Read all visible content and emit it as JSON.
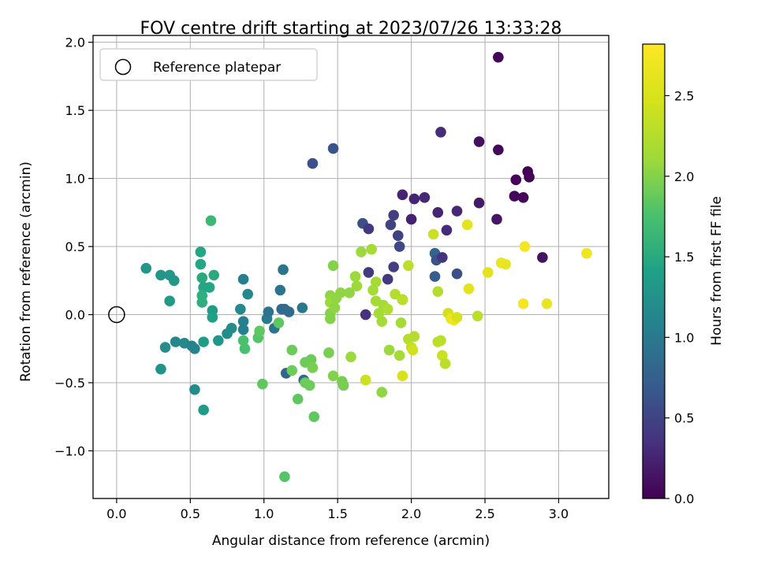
{
  "chart_data": {
    "type": "scatter",
    "title": "FOV centre drift starting at 2023/07/26 13:33:28",
    "xlabel": "Angular distance from reference (arcmin)",
    "ylabel": "Rotation from reference (arcmin)",
    "xlim": [
      -0.16,
      3.34
    ],
    "ylim": [
      -1.35,
      2.05
    ],
    "xticks": [
      0.0,
      0.5,
      1.0,
      1.5,
      2.0,
      2.5,
      3.0
    ],
    "xtick_labels": [
      "0.0",
      "0.5",
      "1.0",
      "1.5",
      "2.0",
      "2.5",
      "3.0"
    ],
    "yticks": [
      -1.0,
      -0.5,
      0.0,
      0.5,
      1.0,
      1.5,
      2.0
    ],
    "ytick_labels": [
      "−1.0",
      "−0.5",
      "0.0",
      "0.5",
      "1.0",
      "1.5",
      "2.0"
    ],
    "grid": true,
    "legend": {
      "position": "top-left",
      "entries": [
        "Reference platepar"
      ]
    },
    "reference_point": {
      "x": 0.0,
      "y": 0.0
    },
    "colorbar": {
      "label": "Hours from first FF file",
      "range": [
        0.0,
        2.82
      ],
      "ticks": [
        0.0,
        0.5,
        1.0,
        1.5,
        2.0,
        2.5
      ],
      "tick_labels": [
        "0.0",
        "0.5",
        "1.0",
        "1.5",
        "2.0",
        "2.5"
      ],
      "colormap": "viridis"
    },
    "points": [
      {
        "x": 2.59,
        "y": 1.89,
        "h": 0.03
      },
      {
        "x": 2.2,
        "y": 1.34,
        "h": 0.32
      },
      {
        "x": 2.46,
        "y": 1.27,
        "h": 0.1
      },
      {
        "x": 2.59,
        "y": 1.21,
        "h": 0.05
      },
      {
        "x": 2.79,
        "y": 1.05,
        "h": 0.02
      },
      {
        "x": 2.8,
        "y": 1.01,
        "h": 0.02
      },
      {
        "x": 2.71,
        "y": 0.99,
        "h": 0.03
      },
      {
        "x": 2.7,
        "y": 0.87,
        "h": 0.05
      },
      {
        "x": 2.76,
        "y": 0.86,
        "h": 0.04
      },
      {
        "x": 2.89,
        "y": 0.42,
        "h": 0.13
      },
      {
        "x": 2.58,
        "y": 0.7,
        "h": 0.15
      },
      {
        "x": 2.46,
        "y": 0.82,
        "h": 0.18
      },
      {
        "x": 2.31,
        "y": 0.76,
        "h": 0.28
      },
      {
        "x": 2.24,
        "y": 0.62,
        "h": 0.3
      },
      {
        "x": 2.18,
        "y": 0.75,
        "h": 0.26
      },
      {
        "x": 2.09,
        "y": 0.86,
        "h": 0.28
      },
      {
        "x": 2.02,
        "y": 0.85,
        "h": 0.26
      },
      {
        "x": 1.94,
        "y": 0.88,
        "h": 0.25
      },
      {
        "x": 2.0,
        "y": 0.7,
        "h": 0.24
      },
      {
        "x": 1.88,
        "y": 0.73,
        "h": 0.45
      },
      {
        "x": 1.86,
        "y": 0.66,
        "h": 0.5
      },
      {
        "x": 1.91,
        "y": 0.58,
        "h": 0.48
      },
      {
        "x": 1.92,
        "y": 0.5,
        "h": 0.55
      },
      {
        "x": 1.67,
        "y": 0.67,
        "h": 0.6
      },
      {
        "x": 1.71,
        "y": 0.63,
        "h": 0.4
      },
      {
        "x": 1.88,
        "y": 0.35,
        "h": 0.45
      },
      {
        "x": 1.84,
        "y": 0.26,
        "h": 0.4
      },
      {
        "x": 1.71,
        "y": 0.31,
        "h": 0.42
      },
      {
        "x": 1.94,
        "y": 0.11,
        "h": 0.5
      },
      {
        "x": 1.69,
        "y": 0.0,
        "h": 0.35
      },
      {
        "x": 2.16,
        "y": 0.45,
        "h": 0.8
      },
      {
        "x": 2.17,
        "y": 0.4,
        "h": 0.62
      },
      {
        "x": 2.21,
        "y": 0.42,
        "h": 0.38
      },
      {
        "x": 2.16,
        "y": 0.28,
        "h": 0.7
      },
      {
        "x": 2.31,
        "y": 0.3,
        "h": 0.6
      },
      {
        "x": 1.33,
        "y": 1.11,
        "h": 0.6
      },
      {
        "x": 1.47,
        "y": 1.22,
        "h": 0.65
      },
      {
        "x": 0.2,
        "y": 0.34,
        "h": 1.3
      },
      {
        "x": 0.3,
        "y": 0.29,
        "h": 1.3
      },
      {
        "x": 0.36,
        "y": 0.29,
        "h": 1.3
      },
      {
        "x": 0.39,
        "y": 0.25,
        "h": 1.3
      },
      {
        "x": 0.36,
        "y": 0.1,
        "h": 1.35
      },
      {
        "x": 0.3,
        "y": -0.4,
        "h": 1.25
      },
      {
        "x": 0.33,
        "y": -0.24,
        "h": 1.2
      },
      {
        "x": 0.4,
        "y": -0.2,
        "h": 1.15
      },
      {
        "x": 0.46,
        "y": -0.21,
        "h": 1.15
      },
      {
        "x": 0.51,
        "y": -0.23,
        "h": 1.1
      },
      {
        "x": 0.53,
        "y": -0.25,
        "h": 1.1
      },
      {
        "x": 0.53,
        "y": -0.55,
        "h": 1.2
      },
      {
        "x": 0.59,
        "y": -0.7,
        "h": 1.35
      },
      {
        "x": 0.59,
        "y": -0.2,
        "h": 1.35
      },
      {
        "x": 0.57,
        "y": 0.46,
        "h": 1.45
      },
      {
        "x": 0.57,
        "y": 0.37,
        "h": 1.45
      },
      {
        "x": 0.58,
        "y": 0.27,
        "h": 1.5
      },
      {
        "x": 0.59,
        "y": 0.2,
        "h": 1.45
      },
      {
        "x": 0.58,
        "y": 0.14,
        "h": 1.55
      },
      {
        "x": 0.58,
        "y": 0.09,
        "h": 1.55
      },
      {
        "x": 0.63,
        "y": 0.2,
        "h": 1.45
      },
      {
        "x": 0.66,
        "y": 0.29,
        "h": 1.5
      },
      {
        "x": 0.65,
        "y": 0.03,
        "h": 1.35
      },
      {
        "x": 0.65,
        "y": -0.02,
        "h": 1.4
      },
      {
        "x": 0.69,
        "y": -0.19,
        "h": 1.3
      },
      {
        "x": 0.64,
        "y": 0.69,
        "h": 1.65
      },
      {
        "x": 0.75,
        "y": -0.14,
        "h": 1.2
      },
      {
        "x": 0.78,
        "y": -0.1,
        "h": 1.2
      },
      {
        "x": 0.84,
        "y": 0.04,
        "h": 1.15
      },
      {
        "x": 0.86,
        "y": -0.05,
        "h": 1.05
      },
      {
        "x": 0.86,
        "y": -0.11,
        "h": 1.05
      },
      {
        "x": 0.86,
        "y": 0.26,
        "h": 1.05
      },
      {
        "x": 0.89,
        "y": 0.15,
        "h": 1.15
      },
      {
        "x": 0.86,
        "y": -0.19,
        "h": 1.75
      },
      {
        "x": 0.87,
        "y": -0.25,
        "h": 1.75
      },
      {
        "x": 0.96,
        "y": -0.17,
        "h": 1.8
      },
      {
        "x": 0.97,
        "y": -0.12,
        "h": 1.85
      },
      {
        "x": 0.99,
        "y": -0.51,
        "h": 1.85
      },
      {
        "x": 1.02,
        "y": -0.03,
        "h": 1.0
      },
      {
        "x": 1.03,
        "y": 0.02,
        "h": 0.95
      },
      {
        "x": 1.07,
        "y": -0.1,
        "h": 0.95
      },
      {
        "x": 1.11,
        "y": 0.18,
        "h": 0.95
      },
      {
        "x": 1.13,
        "y": 0.33,
        "h": 0.95
      },
      {
        "x": 1.12,
        "y": 0.04,
        "h": 0.85
      },
      {
        "x": 1.14,
        "y": 0.04,
        "h": 0.85
      },
      {
        "x": 1.17,
        "y": 0.02,
        "h": 0.85
      },
      {
        "x": 1.1,
        "y": -0.06,
        "h": 1.85
      },
      {
        "x": 1.15,
        "y": -0.43,
        "h": 0.8
      },
      {
        "x": 1.14,
        "y": -1.19,
        "h": 1.8
      },
      {
        "x": 1.19,
        "y": -0.26,
        "h": 1.9
      },
      {
        "x": 1.19,
        "y": -0.41,
        "h": 1.9
      },
      {
        "x": 1.23,
        "y": -0.62,
        "h": 1.85
      },
      {
        "x": 1.26,
        "y": 0.05,
        "h": 1.0
      },
      {
        "x": 1.27,
        "y": -0.48,
        "h": 0.85
      },
      {
        "x": 1.28,
        "y": -0.35,
        "h": 1.9
      },
      {
        "x": 1.28,
        "y": -0.5,
        "h": 1.9
      },
      {
        "x": 1.31,
        "y": -0.52,
        "h": 1.9
      },
      {
        "x": 1.32,
        "y": -0.33,
        "h": 1.9
      },
      {
        "x": 1.33,
        "y": -0.39,
        "h": 1.95
      },
      {
        "x": 1.34,
        "y": -0.75,
        "h": 1.85
      },
      {
        "x": 1.44,
        "y": -0.28,
        "h": 1.95
      },
      {
        "x": 1.45,
        "y": 0.14,
        "h": 2.05
      },
      {
        "x": 1.45,
        "y": 0.09,
        "h": 2.1
      },
      {
        "x": 1.45,
        "y": 0.01,
        "h": 2.0
      },
      {
        "x": 1.45,
        "y": -0.03,
        "h": 2.0
      },
      {
        "x": 1.47,
        "y": 0.36,
        "h": 2.0
      },
      {
        "x": 1.47,
        "y": -0.45,
        "h": 2.0
      },
      {
        "x": 1.48,
        "y": 0.05,
        "h": 2.05
      },
      {
        "x": 1.49,
        "y": 0.12,
        "h": 2.05
      },
      {
        "x": 1.52,
        "y": 0.16,
        "h": 2.05
      },
      {
        "x": 1.53,
        "y": -0.49,
        "h": 1.95
      },
      {
        "x": 1.54,
        "y": -0.52,
        "h": 1.95
      },
      {
        "x": 1.58,
        "y": 0.16,
        "h": 2.05
      },
      {
        "x": 1.59,
        "y": -0.31,
        "h": 2.1
      },
      {
        "x": 1.62,
        "y": 0.28,
        "h": 2.1
      },
      {
        "x": 1.63,
        "y": 0.21,
        "h": 2.1
      },
      {
        "x": 1.66,
        "y": 0.46,
        "h": 2.1
      },
      {
        "x": 1.69,
        "y": -0.48,
        "h": 2.4
      },
      {
        "x": 1.73,
        "y": 0.48,
        "h": 2.15
      },
      {
        "x": 1.74,
        "y": 0.18,
        "h": 2.15
      },
      {
        "x": 1.76,
        "y": 0.24,
        "h": 2.15
      },
      {
        "x": 1.76,
        "y": 0.1,
        "h": 2.15
      },
      {
        "x": 1.78,
        "y": 0.01,
        "h": 2.15
      },
      {
        "x": 1.8,
        "y": -0.05,
        "h": 2.15
      },
      {
        "x": 1.8,
        "y": -0.57,
        "h": 2.05
      },
      {
        "x": 1.81,
        "y": 0.07,
        "h": 2.15
      },
      {
        "x": 1.84,
        "y": 0.04,
        "h": 2.2
      },
      {
        "x": 1.85,
        "y": -0.26,
        "h": 2.1
      },
      {
        "x": 1.89,
        "y": 0.15,
        "h": 2.25
      },
      {
        "x": 1.92,
        "y": -0.3,
        "h": 2.15
      },
      {
        "x": 1.93,
        "y": -0.06,
        "h": 2.15
      },
      {
        "x": 1.94,
        "y": 0.11,
        "h": 2.3
      },
      {
        "x": 1.94,
        "y": -0.45,
        "h": 2.5
      },
      {
        "x": 1.98,
        "y": 0.36,
        "h": 2.3
      },
      {
        "x": 1.98,
        "y": -0.18,
        "h": 2.25
      },
      {
        "x": 2.0,
        "y": -0.24,
        "h": 2.35
      },
      {
        "x": 2.01,
        "y": -0.26,
        "h": 2.45
      },
      {
        "x": 2.02,
        "y": -0.16,
        "h": 2.25
      },
      {
        "x": 2.15,
        "y": 0.59,
        "h": 2.4
      },
      {
        "x": 2.18,
        "y": 0.17,
        "h": 2.25
      },
      {
        "x": 2.18,
        "y": -0.2,
        "h": 2.3
      },
      {
        "x": 2.2,
        "y": -0.19,
        "h": 2.3
      },
      {
        "x": 2.21,
        "y": -0.3,
        "h": 2.4
      },
      {
        "x": 2.23,
        "y": -0.36,
        "h": 2.3
      },
      {
        "x": 2.25,
        "y": 0.01,
        "h": 2.45
      },
      {
        "x": 2.27,
        "y": -0.03,
        "h": 2.65
      },
      {
        "x": 2.29,
        "y": -0.04,
        "h": 2.7
      },
      {
        "x": 2.31,
        "y": -0.02,
        "h": 2.5
      },
      {
        "x": 2.38,
        "y": 0.66,
        "h": 2.6
      },
      {
        "x": 2.39,
        "y": 0.19,
        "h": 2.6
      },
      {
        "x": 2.45,
        "y": -0.01,
        "h": 2.3
      },
      {
        "x": 2.52,
        "y": 0.31,
        "h": 2.6
      },
      {
        "x": 2.61,
        "y": 0.38,
        "h": 2.65
      },
      {
        "x": 2.64,
        "y": 0.37,
        "h": 2.65
      },
      {
        "x": 2.76,
        "y": 0.08,
        "h": 2.75
      },
      {
        "x": 2.77,
        "y": 0.5,
        "h": 2.75
      },
      {
        "x": 2.92,
        "y": 0.08,
        "h": 2.65
      },
      {
        "x": 3.19,
        "y": 0.45,
        "h": 2.7
      }
    ]
  }
}
